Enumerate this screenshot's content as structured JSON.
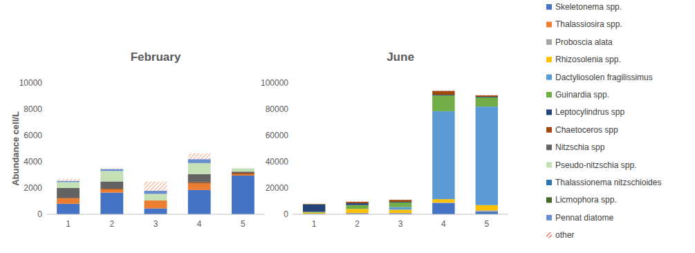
{
  "chart_data": [
    {
      "type": "bar",
      "stacked": true,
      "grid": false,
      "title": "February",
      "y_label": "Abundance cell/L",
      "categories": [
        "1",
        "2",
        "3",
        "4",
        "5"
      ],
      "ylim": [
        0,
        10000
      ],
      "yticks": [
        0,
        2000,
        4000,
        6000,
        8000,
        10000
      ],
      "series": [
        {
          "name": "Skeletonema spp.",
          "color": "#4472c4",
          "values": [
            800,
            1650,
            450,
            1850,
            2950
          ]
        },
        {
          "name": "Thalassiosira spp.",
          "color": "#ed7d31",
          "values": [
            400,
            250,
            600,
            500,
            100
          ]
        },
        {
          "name": "Proboscia alata",
          "color": "#a5a5a5",
          "values": [
            0,
            0,
            0,
            0,
            0
          ]
        },
        {
          "name": "Rhizosolenia spp.",
          "color": "#ffc000",
          "values": [
            0,
            0,
            0,
            0,
            0
          ]
        },
        {
          "name": "Dactyliosolen fragilissimus",
          "color": "#5b9bd5",
          "values": [
            0,
            0,
            0,
            0,
            0
          ]
        },
        {
          "name": "Guinardia spp.",
          "color": "#70ad47",
          "values": [
            0,
            0,
            0,
            0,
            0
          ]
        },
        {
          "name": "Leptocylindrus spp",
          "color": "#264478",
          "values": [
            0,
            0,
            0,
            0,
            0
          ]
        },
        {
          "name": "Chaetoceros spp",
          "color": "#9e480e",
          "values": [
            50,
            50,
            0,
            100,
            100
          ]
        },
        {
          "name": "Nitzschia spp",
          "color": "#636363",
          "values": [
            750,
            550,
            0,
            600,
            100
          ]
        },
        {
          "name": "Pseudo-nitzschia spp.",
          "color": "#c5e0b4",
          "values": [
            450,
            800,
            500,
            850,
            250
          ]
        },
        {
          "name": "Thalassionema nitzschioides",
          "color": "#2e75b6",
          "values": [
            0,
            0,
            0,
            0,
            0
          ]
        },
        {
          "name": "Licmophora spp.",
          "color": "#43682b",
          "values": [
            0,
            0,
            0,
            0,
            0
          ]
        },
        {
          "name": "Pennat diatome",
          "color": "#698ed0",
          "values": [
            100,
            150,
            250,
            300,
            0
          ]
        },
        {
          "name": "other",
          "color": "#f4a582",
          "values": [
            150,
            50,
            700,
            450,
            0
          ]
        }
      ]
    },
    {
      "type": "bar",
      "stacked": true,
      "grid": false,
      "title": "June",
      "legend": "right",
      "categories": [
        "1",
        "2",
        "3",
        "4",
        "5"
      ],
      "ylim": [
        0,
        100000
      ],
      "yticks": [
        0,
        20000,
        40000,
        60000,
        80000,
        100000
      ],
      "series": [
        {
          "name": "Skeletonema spp.",
          "color": "#4472c4",
          "values": [
            300,
            500,
            500,
            8500,
            2000
          ]
        },
        {
          "name": "Thalassiosira spp.",
          "color": "#ed7d31",
          "values": [
            0,
            0,
            0,
            0,
            0
          ]
        },
        {
          "name": "Proboscia alata",
          "color": "#a5a5a5",
          "values": [
            200,
            500,
            500,
            500,
            1000
          ]
        },
        {
          "name": "Rhizosolenia spp.",
          "color": "#ffc000",
          "values": [
            800,
            3000,
            2500,
            2500,
            4000
          ]
        },
        {
          "name": "Dactyliosolen fragilissimus",
          "color": "#5b9bd5",
          "values": [
            0,
            0,
            2000,
            67000,
            75000
          ]
        },
        {
          "name": "Guinardia spp.",
          "color": "#70ad47",
          "values": [
            600,
            3000,
            3500,
            12000,
            7000
          ]
        },
        {
          "name": "Leptocylindrus spp",
          "color": "#264478",
          "values": [
            5500,
            1500,
            500,
            500,
            500
          ]
        },
        {
          "name": "Chaetoceros spp",
          "color": "#9e480e",
          "values": [
            300,
            1000,
            1500,
            3000,
            1000
          ]
        },
        {
          "name": "Nitzschia spp",
          "color": "#636363",
          "values": [
            0,
            0,
            0,
            0,
            0
          ]
        },
        {
          "name": "Pseudo-nitzschia spp.",
          "color": "#c5e0b4",
          "values": [
            0,
            0,
            0,
            0,
            0
          ]
        },
        {
          "name": "Thalassionema nitzschioides",
          "color": "#2e75b6",
          "values": [
            0,
            0,
            0,
            0,
            0
          ]
        },
        {
          "name": "Licmophora spp.",
          "color": "#43682b",
          "values": [
            200,
            0,
            0,
            0,
            0
          ]
        },
        {
          "name": "Pennat diatome",
          "color": "#698ed0",
          "values": [
            0,
            0,
            0,
            0,
            0
          ]
        },
        {
          "name": "other",
          "color": "#e04040",
          "values": [
            100,
            300,
            200,
            300,
            300
          ]
        }
      ]
    }
  ]
}
